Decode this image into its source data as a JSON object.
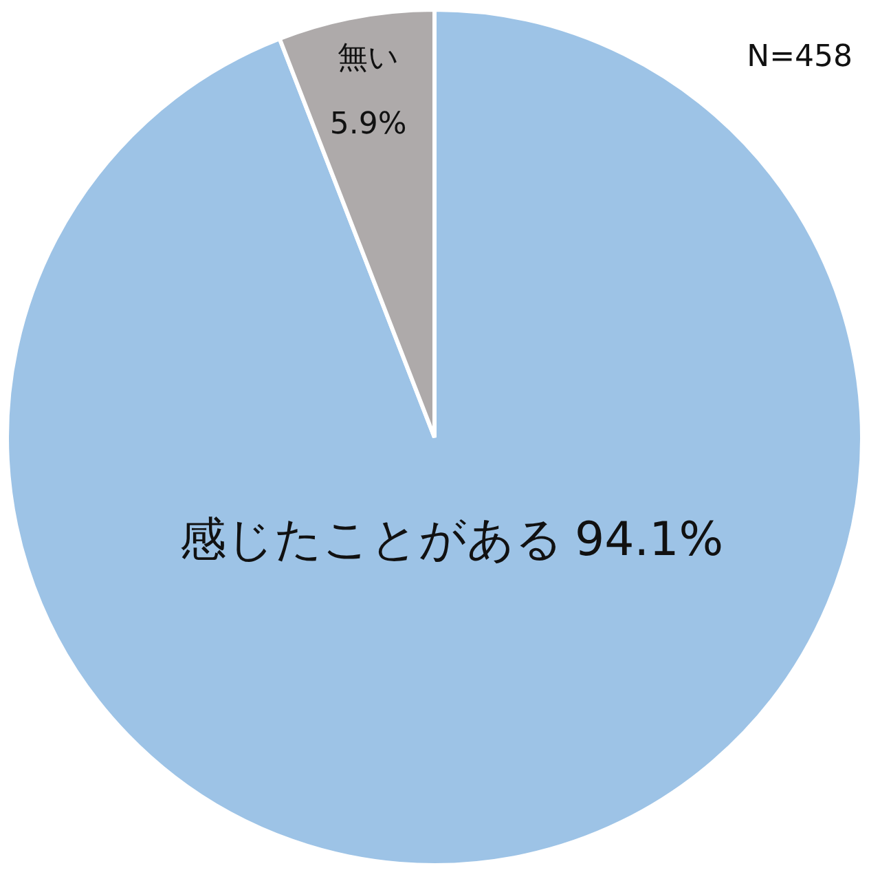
{
  "chart_data": {
    "type": "pie",
    "categories": [
      "感じたことがある",
      "無い"
    ],
    "values": [
      94.1,
      5.9
    ],
    "value_labels": [
      "94.1%",
      "5.9%"
    ],
    "colors": [
      "#9dc3e6",
      "#aeaaaa"
    ],
    "annotations": [
      "N=458"
    ]
  }
}
